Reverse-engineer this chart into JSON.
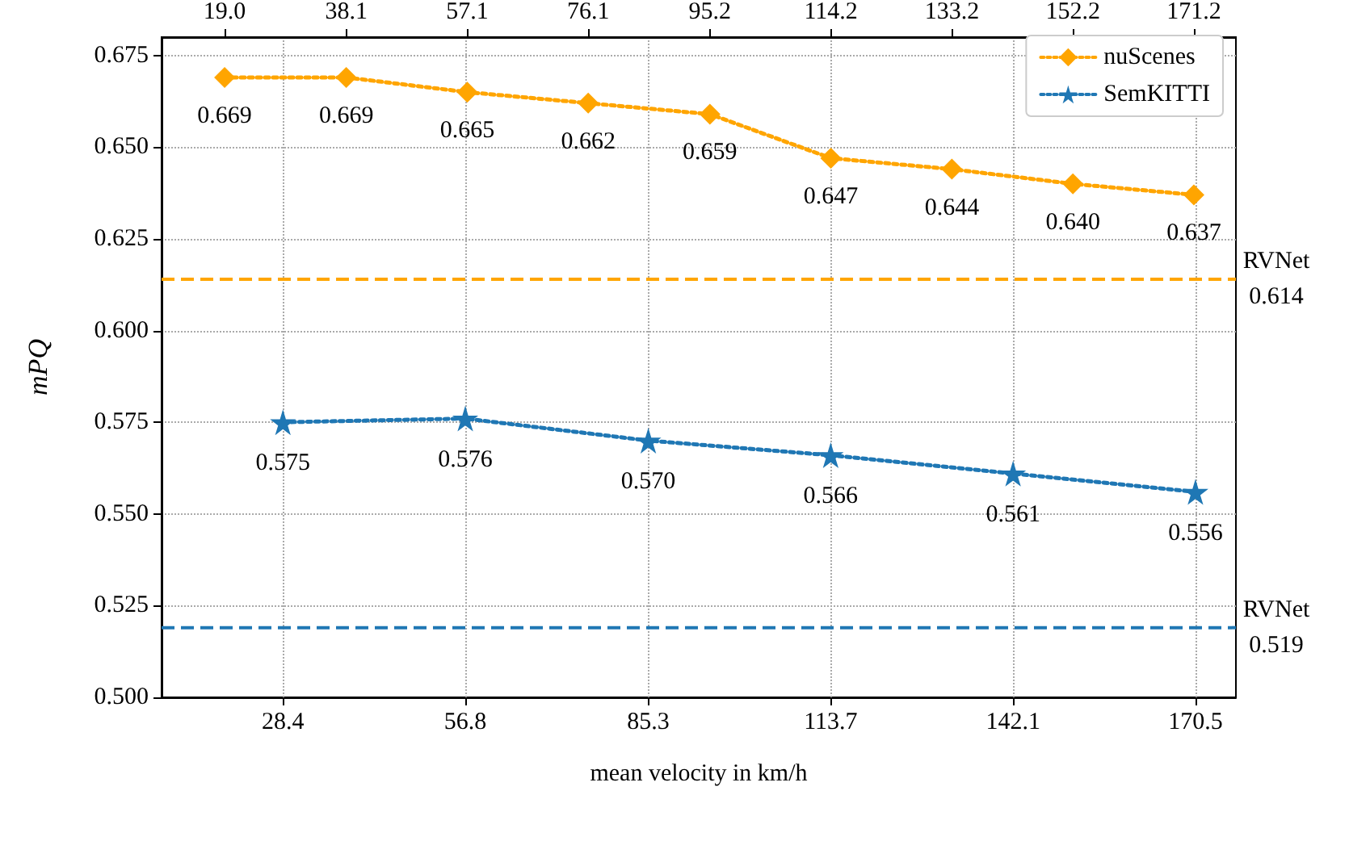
{
  "chart_data": {
    "type": "line",
    "xlabel": "mean velocity in km/h",
    "ylabel": "mPQ",
    "xlim": [
      9.5,
      176.8
    ],
    "x2lim": [
      9.1,
      177.8
    ],
    "xticks": [
      {
        "value": 28.4,
        "label": "28.4"
      },
      {
        "value": 56.8,
        "label": "56.8"
      },
      {
        "value": 85.3,
        "label": "85.3"
      },
      {
        "value": 113.7,
        "label": "113.7"
      },
      {
        "value": 142.1,
        "label": "142.1"
      },
      {
        "value": 170.5,
        "label": "170.5"
      }
    ],
    "x2ticks": [
      {
        "value": 19.0,
        "label": "19.0"
      },
      {
        "value": 38.1,
        "label": "38.1"
      },
      {
        "value": 57.1,
        "label": "57.1"
      },
      {
        "value": 76.1,
        "label": "76.1"
      },
      {
        "value": 95.2,
        "label": "95.2"
      },
      {
        "value": 114.2,
        "label": "114.2"
      },
      {
        "value": 133.2,
        "label": "133.2"
      },
      {
        "value": 152.2,
        "label": "152.2"
      },
      {
        "value": 171.2,
        "label": "171.2"
      }
    ],
    "ylim": [
      0.5,
      0.68
    ],
    "yticks": [
      {
        "value": 0.5,
        "label": "0.500"
      },
      {
        "value": 0.525,
        "label": "0.525"
      },
      {
        "value": 0.55,
        "label": "0.550"
      },
      {
        "value": 0.575,
        "label": "0.575"
      },
      {
        "value": 0.6,
        "label": "0.600"
      },
      {
        "value": 0.625,
        "label": "0.625"
      },
      {
        "value": 0.65,
        "label": "0.650"
      },
      {
        "value": 0.675,
        "label": "0.675"
      }
    ],
    "series": [
      {
        "name": "nuScenes",
        "color": "#ffa500",
        "axis": "x2",
        "marker": "diamond",
        "x": [
          19.0,
          38.1,
          57.1,
          76.1,
          95.2,
          114.2,
          133.2,
          152.2,
          171.2
        ],
        "values": [
          0.669,
          0.669,
          0.665,
          0.662,
          0.659,
          0.647,
          0.644,
          0.64,
          0.637
        ],
        "value_labels": [
          "0.669",
          "0.669",
          "0.665",
          "0.662",
          "0.659",
          "0.647",
          "0.644",
          "0.640",
          "0.637"
        ]
      },
      {
        "name": "SemKITTI",
        "color": "#1f77b4",
        "marker": "star",
        "x": [
          28.4,
          56.8,
          85.3,
          113.7,
          142.1,
          170.5
        ],
        "values": [
          0.575,
          0.576,
          0.57,
          0.566,
          0.561,
          0.556
        ],
        "value_labels": [
          "0.575",
          "0.576",
          "0.570",
          "0.566",
          "0.561",
          "0.556"
        ]
      }
    ],
    "ref_lines": [
      {
        "axis": "y",
        "value": 0.614,
        "label": "RVNet\n0.614",
        "color": "#ffa500",
        "line_style": "dashed"
      },
      {
        "axis": "y",
        "value": 0.519,
        "label": "RVNet\n0.519",
        "color": "#1f77b4",
        "line_style": "dashed"
      }
    ],
    "line_style": "dotted",
    "grid": true,
    "legend": "top right"
  }
}
